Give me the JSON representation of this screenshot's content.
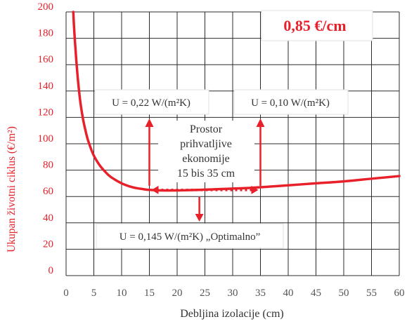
{
  "chart_data": {
    "type": "line",
    "title": "",
    "xlabel": "Debljina izolacije (cm)",
    "ylabel": "Ukupan životni ciklus (€/m²)",
    "xlim": [
      0,
      60
    ],
    "ylim": [
      0,
      200
    ],
    "x_ticks": [
      "0",
      "5",
      "10",
      "15",
      "20",
      "25",
      "30",
      "35",
      "40",
      "45",
      "50",
      "55",
      "60"
    ],
    "y_ticks": [
      "0",
      "20",
      "40",
      "60",
      "80",
      "100",
      "120",
      "140",
      "160",
      "180",
      "200"
    ],
    "grid": true,
    "series": [
      {
        "x": [
          1.3,
          1.5,
          2,
          2.5,
          3,
          3.5,
          4,
          5,
          6,
          7,
          8,
          10,
          12,
          14,
          15,
          17,
          20,
          22,
          25,
          28,
          30,
          33,
          35,
          40,
          45,
          50,
          55,
          60
        ],
        "y": [
          200,
          184,
          155,
          134,
          120,
          110,
          102,
          91,
          84,
          79,
          75,
          70,
          67,
          65.5,
          65,
          64.6,
          64.6,
          64.8,
          65.2,
          65.7,
          66,
          66.5,
          67,
          68.5,
          70,
          71.5,
          73.5,
          75.5
        ],
        "color": "#e8202a"
      }
    ],
    "annotations": {
      "price_label": "0,85 €/cm",
      "u_left": "U = 0,22 W/(m²K)",
      "u_right": "U = 0,10 W/(m²K)",
      "u_optimal": "U = 0,145 W/(m²K) „Optimalno”",
      "range_text": [
        "Prostor",
        "prihvatljive",
        "ekonomije",
        "15 bis 35 cm"
      ],
      "range_start": 15,
      "range_end": 35
    },
    "colors": {
      "accent": "#e8202a",
      "grid": "#2b2b2b",
      "tick_y": "#e8202a",
      "tick_x": "#555555",
      "box_bg": "#ffffff",
      "box_border": "#d8d8d8"
    }
  }
}
